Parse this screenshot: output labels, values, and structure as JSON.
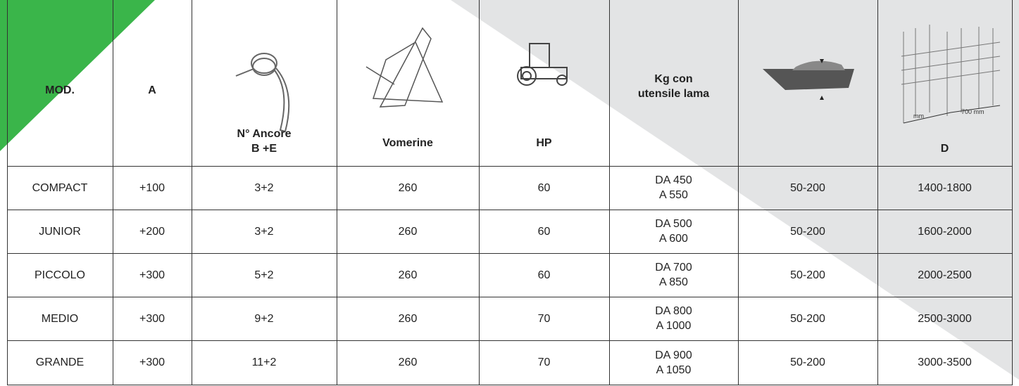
{
  "table": {
    "header": [
      "MOD.",
      "A",
      "N° Ancore\nB +E",
      "Vomerine",
      "HP",
      "Kg con\nutensile lama",
      null,
      "D"
    ],
    "icon_labels": [
      "mm",
      "700 mm"
    ],
    "rows": [
      [
        "COMPACT",
        "+100",
        "3+2",
        "260",
        "60",
        "DA 450\nA 550",
        "50-200",
        "1400-1800"
      ],
      [
        "JUNIOR",
        "+200",
        "3+2",
        "260",
        "60",
        "DA 500\nA 600",
        "50-200",
        "1600-2000"
      ],
      [
        "PICCOLO",
        "+300",
        "5+2",
        "260",
        "60",
        "DA 700\nA 850",
        "50-200",
        "2000-2500"
      ],
      [
        "MEDIO",
        "+300",
        "9+2",
        "260",
        "70",
        "DA 800\nA 1000",
        "50-200",
        "2500-3000"
      ],
      [
        "GRANDE",
        "+300",
        "11+2",
        "260",
        "70",
        "DA 900\nA 1050",
        "50-200",
        "3000-3500"
      ]
    ]
  }
}
